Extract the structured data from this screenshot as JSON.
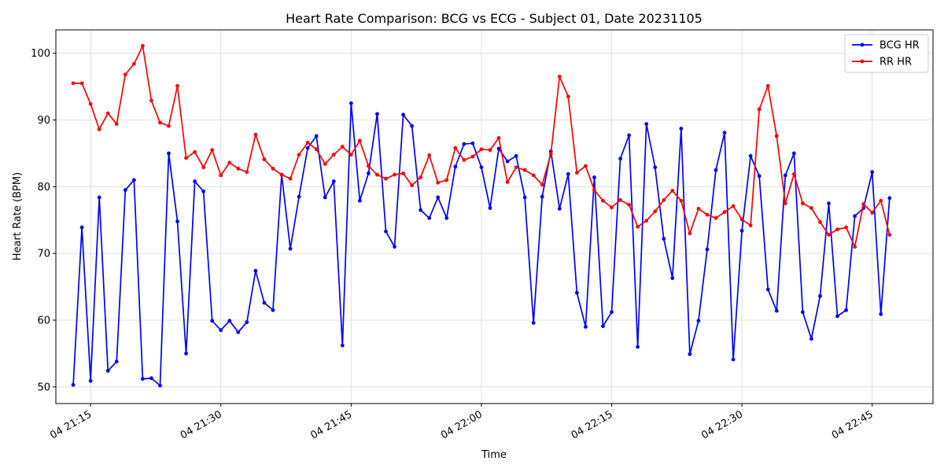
{
  "chart_data": {
    "type": "line",
    "title": "Heart Rate Comparison: BCG vs ECG - Subject 01, Date 20231105",
    "xlabel": "Time",
    "ylabel": "Heart Rate (BPM)",
    "x_ticks": [
      "04 21:15",
      "04 21:30",
      "04 21:45",
      "04 22:00",
      "04 22:15",
      "04 22:30",
      "04 22:45"
    ],
    "y_ticks": [
      50,
      60,
      70,
      80,
      90,
      100
    ],
    "ylim": [
      47.5,
      103.5
    ],
    "xlim": [
      "04 21:11",
      "04 22:52"
    ],
    "grid": true,
    "legend_position": "top-right",
    "series": [
      {
        "name": "BCG HR",
        "color": "#0000ff",
        "x": [
          "04 21:13",
          "04 21:14",
          "04 21:15",
          "04 21:16",
          "04 21:17",
          "04 21:18",
          "04 21:19",
          "04 21:20",
          "04 21:21",
          "04 21:22",
          "04 21:23",
          "04 21:24",
          "04 21:25",
          "04 21:26",
          "04 21:27",
          "04 21:28",
          "04 21:29",
          "04 21:30",
          "04 21:31",
          "04 21:32",
          "04 21:33",
          "04 21:34",
          "04 21:35",
          "04 21:36",
          "04 21:37",
          "04 21:38",
          "04 21:39",
          "04 21:40",
          "04 21:41",
          "04 21:42",
          "04 21:43",
          "04 21:44",
          "04 21:45",
          "04 21:46",
          "04 21:47",
          "04 21:48",
          "04 21:49",
          "04 21:50",
          "04 21:51",
          "04 21:52",
          "04 21:53",
          "04 21:54",
          "04 21:55",
          "04 21:56",
          "04 21:57",
          "04 21:58",
          "04 21:59",
          "04 22:00",
          "04 22:01",
          "04 22:02",
          "04 22:03",
          "04 22:04",
          "04 22:05",
          "04 22:06",
          "04 22:07",
          "04 22:08",
          "04 22:09",
          "04 22:10",
          "04 22:11",
          "04 22:12",
          "04 22:13",
          "04 22:14",
          "04 22:15",
          "04 22:16",
          "04 22:17",
          "04 22:18",
          "04 22:19",
          "04 22:20",
          "04 22:21",
          "04 22:22",
          "04 22:23",
          "04 22:24",
          "04 22:25",
          "04 22:26",
          "04 22:27",
          "04 22:28",
          "04 22:29",
          "04 22:30",
          "04 22:31",
          "04 22:32",
          "04 22:33",
          "04 22:34",
          "04 22:35",
          "04 22:36",
          "04 22:37",
          "04 22:38",
          "04 22:39",
          "04 22:40",
          "04 22:41",
          "04 22:42",
          "04 22:43",
          "04 22:44",
          "04 22:45",
          "04 22:46",
          "04 22:47"
        ],
        "values": [
          50.3,
          73.9,
          50.9,
          78.4,
          52.4,
          53.8,
          79.5,
          81.0,
          51.2,
          51.3,
          50.2,
          85.0,
          74.8,
          55.0,
          80.8,
          79.3,
          59.9,
          58.5,
          59.9,
          58.2,
          59.7,
          67.4,
          62.6,
          61.5,
          81.8,
          70.7,
          78.5,
          85.8,
          87.6,
          78.4,
          80.8,
          56.2,
          92.5,
          77.9,
          82.0,
          90.9,
          73.3,
          71.0,
          90.8,
          89.1,
          76.5,
          75.3,
          78.4,
          75.3,
          83.0,
          86.4,
          86.5,
          82.9,
          76.8,
          85.7,
          83.8,
          84.6,
          78.4,
          59.6,
          78.5,
          85.3,
          76.7,
          81.9,
          64.1,
          59.0,
          81.4,
          59.1,
          61.2,
          84.2,
          87.7,
          56.0,
          89.4,
          82.9,
          72.2,
          66.3,
          88.7,
          54.9,
          59.9,
          70.6,
          82.5,
          88.1,
          54.1,
          73.4,
          84.6,
          81.6,
          64.6,
          61.4,
          81.7,
          85.0,
          61.2,
          57.2,
          63.6,
          77.5,
          60.6,
          61.5,
          75.6,
          76.8,
          82.2,
          60.9,
          78.3
        ]
      },
      {
        "name": "RR HR",
        "color": "#ff0000",
        "x": [
          "04 21:13",
          "04 21:14",
          "04 21:15",
          "04 21:16",
          "04 21:17",
          "04 21:18",
          "04 21:19",
          "04 21:20",
          "04 21:21",
          "04 21:22",
          "04 21:23",
          "04 21:24",
          "04 21:25",
          "04 21:26",
          "04 21:27",
          "04 21:28",
          "04 21:29",
          "04 21:30",
          "04 21:31",
          "04 21:32",
          "04 21:33",
          "04 21:34",
          "04 21:35",
          "04 21:36",
          "04 21:37",
          "04 21:38",
          "04 21:39",
          "04 21:40",
          "04 21:41",
          "04 21:42",
          "04 21:43",
          "04 21:44",
          "04 21:45",
          "04 21:46",
          "04 21:47",
          "04 21:48",
          "04 21:49",
          "04 21:50",
          "04 21:51",
          "04 21:52",
          "04 21:53",
          "04 21:54",
          "04 21:55",
          "04 21:56",
          "04 21:57",
          "04 21:58",
          "04 21:59",
          "04 22:00",
          "04 22:01",
          "04 22:02",
          "04 22:03",
          "04 22:04",
          "04 22:05",
          "04 22:06",
          "04 22:07",
          "04 22:08",
          "04 22:09",
          "04 22:10",
          "04 22:11",
          "04 22:12",
          "04 22:13",
          "04 22:14",
          "04 22:15",
          "04 22:16",
          "04 22:17",
          "04 22:18",
          "04 22:19",
          "04 22:20",
          "04 22:21",
          "04 22:22",
          "04 22:23",
          "04 22:24",
          "04 22:25",
          "04 22:26",
          "04 22:27",
          "04 22:28",
          "04 22:29",
          "04 22:30",
          "04 22:31",
          "04 22:32",
          "04 22:33",
          "04 22:34",
          "04 22:35",
          "04 22:36",
          "04 22:37",
          "04 22:38",
          "04 22:39",
          "04 22:40",
          "04 22:41",
          "04 22:42",
          "04 22:43",
          "04 22:44",
          "04 22:45",
          "04 22:46",
          "04 22:47"
        ],
        "values": [
          95.5,
          95.5,
          92.4,
          88.6,
          91.0,
          89.4,
          96.8,
          98.4,
          101.1,
          92.9,
          89.6,
          89.1,
          95.1,
          84.3,
          85.2,
          82.9,
          85.5,
          81.7,
          83.6,
          82.7,
          82.2,
          87.8,
          84.1,
          82.7,
          81.8,
          81.2,
          84.8,
          86.6,
          85.6,
          83.4,
          84.8,
          86.0,
          84.8,
          86.9,
          83.1,
          81.8,
          81.2,
          81.8,
          82.0,
          80.2,
          81.4,
          84.7,
          80.6,
          81.0,
          85.8,
          84.0,
          84.5,
          85.6,
          85.5,
          87.3,
          80.7,
          82.9,
          82.5,
          81.7,
          80.3,
          84.9,
          96.5,
          93.5,
          82.1,
          83.1,
          79.5,
          77.9,
          76.9,
          78.0,
          77.3,
          74.0,
          74.9,
          76.3,
          78.0,
          79.4,
          77.9,
          73.0,
          76.7,
          75.8,
          75.3,
          76.2,
          77.1,
          75.1,
          74.2,
          91.6,
          95.1,
          87.6,
          77.5,
          81.9,
          77.5,
          76.8,
          74.7,
          72.8,
          73.6,
          73.9,
          71.0,
          77.4,
          76.1,
          77.9,
          72.8
        ]
      }
    ]
  }
}
